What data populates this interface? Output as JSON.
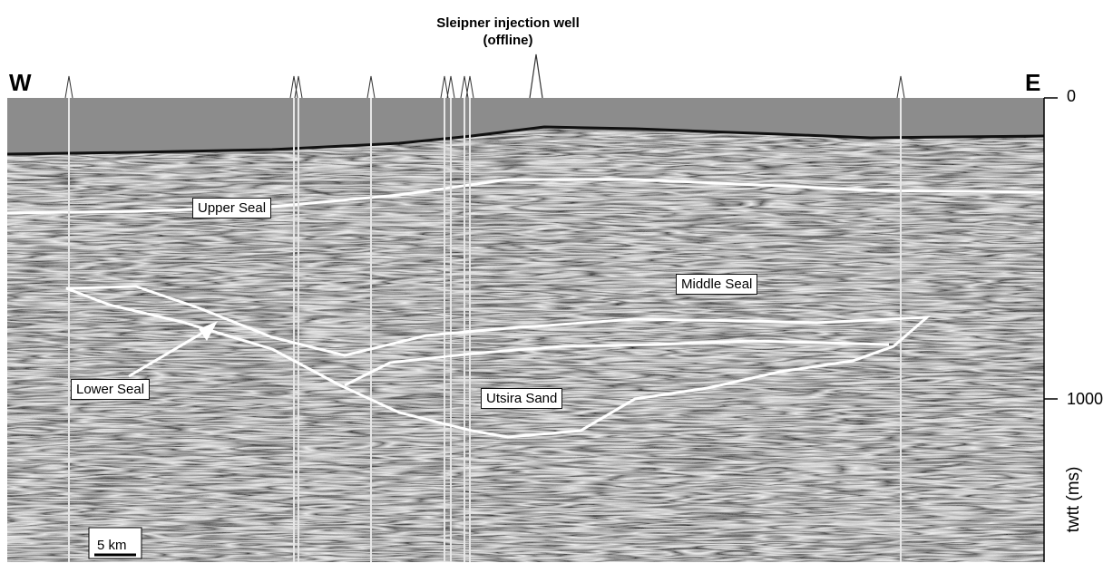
{
  "title_line1": "Sleipner injection well",
  "title_line2": "(offline)",
  "west_label": "W",
  "east_label": "E",
  "axis": {
    "title": "twtt (ms)",
    "ticks": [
      "0",
      "1000"
    ]
  },
  "units": {
    "upper_seal": "Upper Seal",
    "middle_seal": "Middle Seal",
    "lower_seal": "Lower Seal",
    "utsira_sand": "Utsira Sand"
  },
  "scale_bar_label": "5 km",
  "colors": {
    "water": "#8c8c8c",
    "horizon_outline": "#ffffff",
    "well": "#e6e6e6"
  },
  "wells_count": 10
}
